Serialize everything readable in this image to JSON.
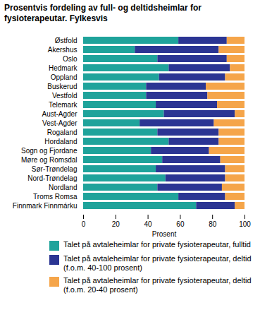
{
  "chart_data": {
    "type": "bar",
    "orientation": "horizontal",
    "stacked": true,
    "title": "Prosentvis fordeling av full- og deltidsheimlar for fysioterapeutar. Fylkesvis",
    "x_label": "Prosent",
    "categories": [
      "Østfold",
      "Akershus",
      "Oslo",
      "Hedmark",
      "Oppland",
      "Buskerud",
      "Vestfold",
      "Telemark",
      "Aust-Agder",
      "Vest-Agder",
      "Rogaland",
      "Hordaland",
      "Sogn og Fjordane",
      "Møre og Romsdal",
      "Sør-Trøndelag",
      "Nord-Trøndelag",
      "Nordland",
      "Troms Romsa",
      "Finnmark Finnmárku"
    ],
    "series": [
      {
        "name": "Talet på avtaleheimlar for private fysioterapeutar, fulltid",
        "color": "#1fa39b",
        "values": [
          59,
          32,
          46,
          53,
          47,
          39,
          39,
          45,
          50,
          35,
          46,
          53,
          42,
          49,
          45,
          51,
          46,
          59,
          70
        ]
      },
      {
        "name": "Talet på avtaleheimlar for private fysioterapeutar, deltid (f.o.m. 40-100 prosent)",
        "color": "#2b3593",
        "values": [
          30,
          52,
          43,
          38,
          41,
          37,
          38,
          38,
          44,
          46,
          38,
          31,
          36,
          36,
          43,
          37,
          40,
          29,
          24
        ]
      },
      {
        "name": "Talet på avtaleheimlar for private fysioterapeutar, deltid (f.o.m. 20-40 prosent)",
        "color": "#f5a54a",
        "values": [
          11,
          16,
          11,
          9,
          12,
          24,
          23,
          17,
          6,
          19,
          16,
          16,
          22,
          15,
          12,
          12,
          14,
          12,
          6
        ]
      }
    ],
    "xlim": [
      0,
      100
    ],
    "xticks": [
      0,
      20,
      40,
      60,
      80,
      100
    ],
    "grid": false,
    "legend": "bottom"
  }
}
